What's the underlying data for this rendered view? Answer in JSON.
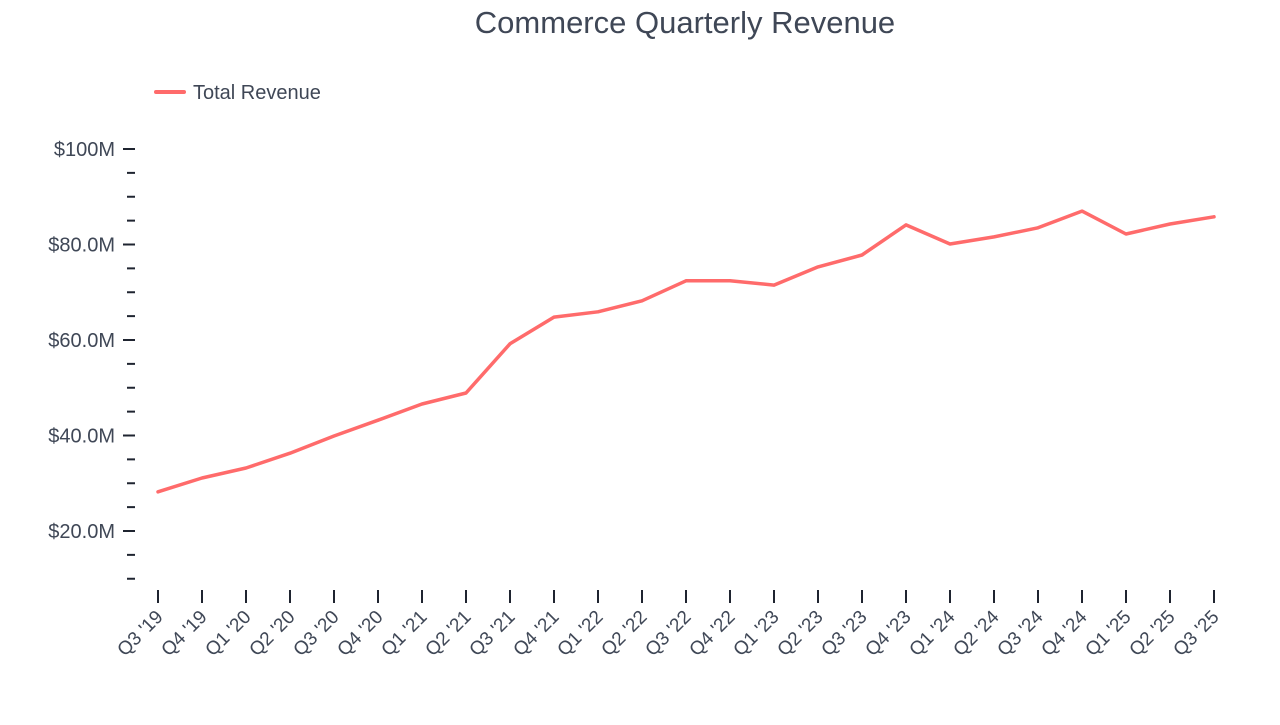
{
  "chart_data": {
    "type": "line",
    "title": "Commerce Quarterly Revenue",
    "xlabel": "",
    "ylabel": "",
    "ylim": [
      7.7,
      100
    ],
    "grid": false,
    "legend_position": "top-left",
    "y_ticks": [
      20,
      40,
      60,
      80,
      100
    ],
    "y_tick_labels": [
      "$20.0M",
      "$40.0M",
      "$60.0M",
      "$80.0M",
      "$100M"
    ],
    "categories": [
      "Q3 '19",
      "Q4 '19",
      "Q1 '20",
      "Q2 '20",
      "Q3 '20",
      "Q4 '20",
      "Q1 '21",
      "Q2 '21",
      "Q3 '21",
      "Q4 '21",
      "Q1 '22",
      "Q2 '22",
      "Q3 '22",
      "Q4 '22",
      "Q1 '23",
      "Q2 '23",
      "Q3 '23",
      "Q4 '23",
      "Q1 '24",
      "Q2 '24",
      "Q3 '24",
      "Q4 '24",
      "Q1 '25",
      "Q2 '25",
      "Q3 '25"
    ],
    "series": [
      {
        "name": "Total Revenue",
        "color": "#ff6b6b",
        "values": [
          28.2,
          31.1,
          33.2,
          36.3,
          39.9,
          43.2,
          46.6,
          48.9,
          59.2,
          64.8,
          65.9,
          68.2,
          72.4,
          72.4,
          71.5,
          75.3,
          77.8,
          84.1,
          80.1,
          81.6,
          83.5,
          87.0,
          82.2,
          84.3,
          85.8
        ]
      }
    ]
  }
}
